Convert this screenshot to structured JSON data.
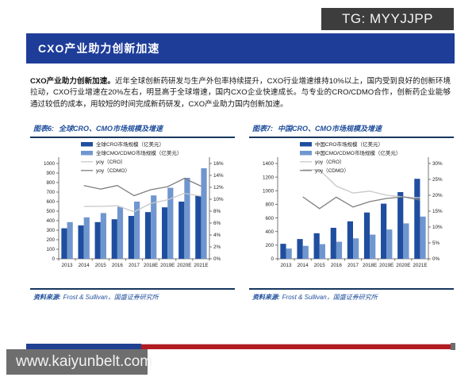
{
  "tg_watermark": "TG: MYYJJPP",
  "header": {
    "title": "CXO产业助力创新加速"
  },
  "body": {
    "lead_bold": "CXO产业助力创新加速。",
    "text": "近年全球创新药研发与生产外包率持续提升，CXO行业增速维持10%以上，国内受到良好的创新环境拉动，CXO行业增速在20%左右，明显高于全球增速，国内CXO企业快速成长。与专业的CRO/CDMO合作，创新药企业能够通过较低的成本，用较短的时间完成新药研发，CXO产业助力国内创新加速。"
  },
  "figures": [
    {
      "label": "图表6:",
      "title": "全球CRO、CMO市场规模及增速",
      "source_label": "资料来源:",
      "source": "Frost & Sullivan，国盛证券研究所"
    },
    {
      "label": "图表7:",
      "title": "中国CRO、CMO市场规模及增速",
      "source_label": "资料来源:",
      "source": "Frost & Sullivan，国盛证券研究所"
    }
  ],
  "chart_data": [
    {
      "type": "bar",
      "title": "全球CRO、CMO市场规模及增速",
      "categories": [
        "2013",
        "2014",
        "2015",
        "2016",
        "2017",
        "2018E",
        "2019E",
        "2020E",
        "2021E"
      ],
      "bar_series": [
        {
          "name": "全球CRO市场规模（亿美元）",
          "color": "#1f4e9f",
          "axis": "left",
          "values": [
            320,
            350,
            385,
            415,
            450,
            490,
            540,
            600,
            660
          ]
        },
        {
          "name": "全球CMO/CDMO市场规模（亿美元）",
          "color": "#7096cf",
          "axis": "left",
          "values": [
            385,
            435,
            480,
            545,
            600,
            665,
            745,
            850,
            950
          ]
        }
      ],
      "line_series": [
        {
          "name": "yoy（CRO）",
          "color": "#c8c8c8",
          "axis": "right",
          "values": [
            null,
            8.8,
            8.8,
            8.9,
            7.9,
            9.3,
            9.9,
            11.0,
            10.5
          ]
        },
        {
          "name": "yoy（CDMO）",
          "color": "#7f7f7f",
          "axis": "right",
          "values": [
            null,
            12.3,
            11.7,
            12.3,
            10.6,
            11.6,
            12.1,
            13.5,
            12.2
          ]
        }
      ],
      "left_axis": {
        "min": 0,
        "max": 1000,
        "step": 100,
        "suffix": ""
      },
      "right_axis": {
        "min": 0,
        "max": 16,
        "step": 2,
        "suffix": "%"
      },
      "legend_position": "top",
      "grid": false
    },
    {
      "type": "bar",
      "title": "中国CRO、CMO市场规模及增速",
      "categories": [
        "2013",
        "2014",
        "2015",
        "2016",
        "2017",
        "2018E",
        "2019E",
        "2020E",
        "2021E"
      ],
      "bar_series": [
        {
          "name": "中国CRO市场规模（亿美元）",
          "color": "#1f4e9f",
          "axis": "left",
          "values": [
            220,
            290,
            375,
            455,
            550,
            680,
            810,
            980,
            1175
          ]
        },
        {
          "name": "中国CMO/CDMO市场规模（亿美元）",
          "color": "#7096cf",
          "axis": "left",
          "values": [
            150,
            190,
            215,
            250,
            300,
            355,
            430,
            520,
            620
          ]
        }
      ],
      "line_series": [
        {
          "name": "yoy（CRO）",
          "color": "#c8c8c8",
          "axis": "right",
          "values": [
            null,
            28.0,
            28.0,
            22.9,
            20.7,
            21.3,
            20.0,
            19.5,
            19.2
          ]
        },
        {
          "name": "yoy（CDMO）",
          "color": "#7f7f7f",
          "axis": "right",
          "values": [
            null,
            19.5,
            15.8,
            19.4,
            16.3,
            18.0,
            19.0,
            19.5,
            18.5
          ]
        }
      ],
      "left_axis": {
        "min": 0,
        "max": 1400,
        "step": 200,
        "suffix": ""
      },
      "right_axis": {
        "min": 0,
        "max": 30,
        "step": 5,
        "suffix": "%"
      },
      "legend_position": "top",
      "grid": false
    }
  ],
  "footer": {
    "watermark": "www.kaiyunbelt.com"
  },
  "colors": {
    "header_bar": "#1e3d99",
    "accent_rule": "#17375e",
    "title_text": "#1f4e9c",
    "bar_dark": "#1f4e9f",
    "bar_light": "#7096cf",
    "line_light": "#c8c8c8",
    "line_dark": "#7f7f7f",
    "stripe_blue": "#1f4191",
    "stripe_red": "#b11b22",
    "tg_box": "#3d3d3d",
    "watermark_box": "#6e6e6e"
  }
}
